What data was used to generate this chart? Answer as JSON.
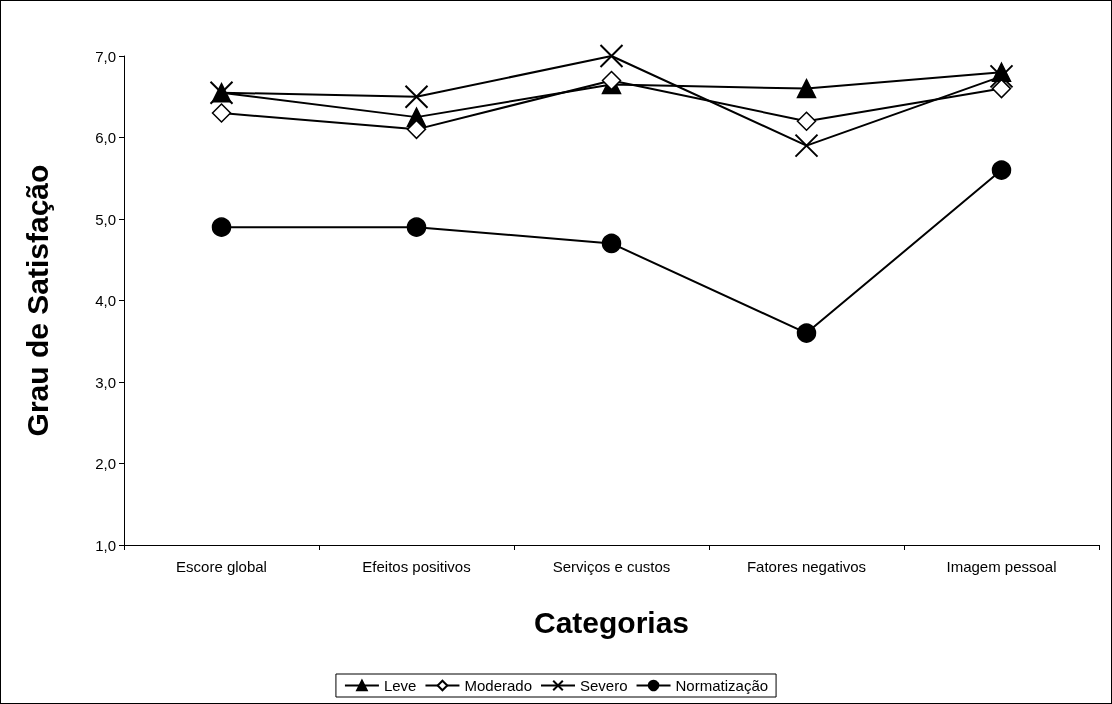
{
  "chart_data": {
    "type": "line",
    "xlabel": "Categorias",
    "ylabel": "Grau de Satisfação",
    "categories": [
      "Escore global",
      "Efeitos positivos",
      "Serviços e custos",
      "Fatores negativos",
      "Imagem pessoal"
    ],
    "series": [
      {
        "name": "Leve",
        "color": "#000000",
        "marker": "triangle",
        "values": [
          6.55,
          6.25,
          6.65,
          6.6,
          6.8
        ]
      },
      {
        "name": "Moderado",
        "color": "#000000",
        "marker": "diamond",
        "values": [
          6.3,
          6.1,
          6.7,
          6.2,
          6.6
        ]
      },
      {
        "name": "Severo",
        "color": "#000000",
        "marker": "cross",
        "values": [
          6.55,
          6.5,
          7.0,
          5.9,
          6.75
        ]
      },
      {
        "name": "Normatização",
        "color": "#000000",
        "marker": "circle",
        "values": [
          4.9,
          4.9,
          4.7,
          3.6,
          5.6
        ]
      }
    ],
    "ylim": [
      1,
      7
    ],
    "yticks": [
      {
        "value": 1,
        "label": "1,0"
      },
      {
        "value": 2,
        "label": "2,0"
      },
      {
        "value": 3,
        "label": "3,0"
      },
      {
        "value": 4,
        "label": "4,0"
      },
      {
        "value": 5,
        "label": "5,0"
      },
      {
        "value": 6,
        "label": "6,0"
      },
      {
        "value": 7,
        "label": "7,0"
      }
    ],
    "grid": false,
    "legend": "bottom",
    "line_style": "solid"
  }
}
